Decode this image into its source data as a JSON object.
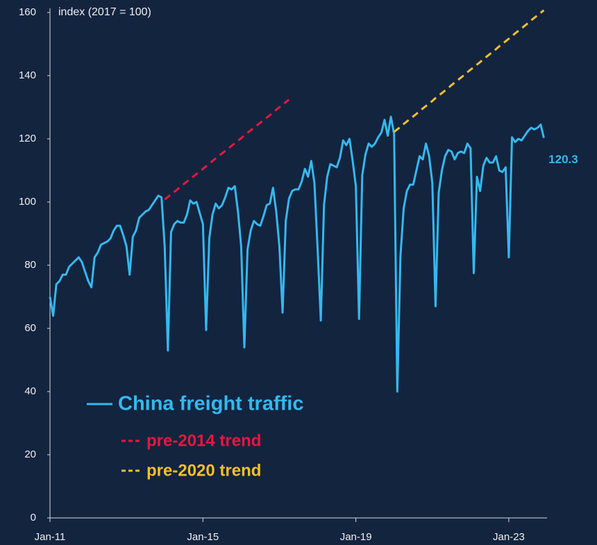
{
  "chart_data": {
    "type": "line",
    "y_label": "index (2017 = 100)",
    "categories": [
      "Jan-11",
      null,
      null,
      null,
      null,
      null,
      null,
      null,
      null,
      null,
      null,
      null,
      null,
      null,
      null,
      null,
      null,
      null,
      null,
      null,
      null,
      null,
      null,
      null,
      null,
      null,
      null,
      null,
      null,
      null,
      null,
      null,
      null,
      null,
      null,
      null,
      null,
      null,
      null,
      null,
      null,
      null,
      null,
      null,
      null,
      null,
      null,
      null,
      "Jan-15",
      null,
      null,
      null,
      null,
      null,
      null,
      null,
      null,
      null,
      null,
      null,
      null,
      null,
      null,
      null,
      null,
      null,
      null,
      null,
      null,
      null,
      null,
      null,
      null,
      null,
      null,
      null,
      null,
      null,
      null,
      null,
      null,
      null,
      null,
      null,
      null,
      null,
      null,
      null,
      null,
      null,
      null,
      null,
      null,
      null,
      null,
      null,
      "Jan-19",
      null,
      null,
      null,
      null,
      null,
      null,
      null,
      null,
      null,
      null,
      null,
      null,
      null,
      null,
      null,
      null,
      null,
      null,
      null,
      null,
      null,
      null,
      null,
      null,
      null,
      null,
      null,
      null,
      null,
      null,
      null,
      null,
      null,
      null,
      null,
      null,
      null,
      null,
      null,
      null,
      null,
      null,
      null,
      null,
      null,
      null,
      null,
      "Jan-23",
      null,
      null,
      null,
      null,
      null,
      null,
      null,
      null,
      null,
      null,
      null
    ],
    "series": [
      {
        "name": "China freight traffic",
        "color": "#35b8ee",
        "dash": false,
        "label_last": true,
        "values": [
          70,
          64,
          74,
          75,
          77,
          77,
          79.5,
          80.5,
          81.5,
          82.5,
          81,
          78,
          75,
          73,
          82.5,
          84,
          86.5,
          87,
          87.5,
          88.5,
          91,
          92.5,
          92.5,
          89.5,
          86,
          77,
          89,
          91,
          95,
          96,
          97,
          97.5,
          99,
          100.5,
          102,
          101.5,
          86,
          53,
          90.5,
          93,
          94,
          93.5,
          93.5,
          96,
          100.5,
          99.5,
          100,
          96.5,
          93,
          59.5,
          88.5,
          96,
          99.5,
          98,
          99,
          101.5,
          104.5,
          104,
          105,
          97,
          86,
          54,
          85,
          91,
          94,
          93,
          92.5,
          95.5,
          99,
          99.5,
          104.5,
          97,
          86,
          65,
          94,
          101,
          103.5,
          104,
          104,
          106.5,
          110.5,
          108,
          113,
          106,
          85,
          62.5,
          99,
          108,
          112,
          111.5,
          111,
          114,
          119.5,
          118,
          120,
          113,
          105,
          63,
          108.5,
          115,
          118.5,
          117.5,
          118.5,
          120.5,
          122,
          126,
          121,
          127,
          121.5,
          40,
          83,
          98,
          103.5,
          105.5,
          105.5,
          110,
          114.5,
          113.5,
          118.5,
          114.5,
          106,
          67,
          103,
          110,
          114.5,
          116.5,
          116,
          113.5,
          115.5,
          116,
          115.5,
          118.5,
          117,
          77.5,
          108,
          103.5,
          111.5,
          114,
          112.5,
          112.5,
          114.5,
          110,
          109.5,
          111,
          82.5,
          120.5,
          119,
          120,
          119.5,
          121,
          122.5,
          123.5,
          123,
          123.5,
          124.5,
          120.3
        ]
      },
      {
        "name": "pre-2014 trend",
        "color": "#e8173f",
        "dash": true,
        "values": [
          null,
          null,
          null,
          null,
          null,
          null,
          null,
          null,
          null,
          null,
          null,
          null,
          null,
          null,
          null,
          null,
          null,
          null,
          null,
          null,
          null,
          null,
          null,
          null,
          null,
          null,
          null,
          null,
          null,
          null,
          null,
          null,
          null,
          null,
          null,
          null,
          100.8,
          101.6,
          102.4,
          103.2,
          104.0,
          104.9,
          105.7,
          106.5,
          107.3,
          108.1,
          108.9,
          109.7,
          110.5,
          111.3,
          112.1,
          113.0,
          113.8,
          114.6,
          115.4,
          116.2,
          117.0,
          117.8,
          118.6,
          119.4,
          120.2,
          121.1,
          121.9,
          122.7,
          123.5,
          124.3,
          125.1,
          125.9,
          126.7,
          127.5,
          128.3,
          129.2,
          130.0,
          130.8,
          131.6,
          132.4,
          null,
          null,
          null,
          null,
          null,
          null,
          null,
          null,
          null,
          null,
          null,
          null,
          null,
          null,
          null,
          null,
          null,
          null,
          null,
          null,
          null,
          null,
          null,
          null,
          null,
          null,
          null,
          null,
          null,
          null,
          null,
          null,
          null,
          null,
          null,
          null,
          null,
          null,
          null,
          null,
          null,
          null,
          null,
          null,
          null,
          null,
          null,
          null,
          null,
          null,
          null,
          null,
          null,
          null,
          null,
          null,
          null,
          null,
          null,
          null,
          null,
          null,
          null,
          null,
          null,
          null,
          null,
          null,
          null,
          null,
          null,
          null,
          null,
          null,
          null,
          null,
          null,
          null,
          null,
          null
        ]
      },
      {
        "name": "pre-2020 trend",
        "color": "#f5c02a",
        "dash": true,
        "values": [
          null,
          null,
          null,
          null,
          null,
          null,
          null,
          null,
          null,
          null,
          null,
          null,
          null,
          null,
          null,
          null,
          null,
          null,
          null,
          null,
          null,
          null,
          null,
          null,
          null,
          null,
          null,
          null,
          null,
          null,
          null,
          null,
          null,
          null,
          null,
          null,
          null,
          null,
          null,
          null,
          null,
          null,
          null,
          null,
          null,
          null,
          null,
          null,
          null,
          null,
          null,
          null,
          null,
          null,
          null,
          null,
          null,
          null,
          null,
          null,
          null,
          null,
          null,
          null,
          null,
          null,
          null,
          null,
          null,
          null,
          null,
          null,
          null,
          null,
          null,
          null,
          null,
          null,
          null,
          null,
          null,
          null,
          null,
          null,
          null,
          null,
          null,
          null,
          null,
          null,
          null,
          null,
          null,
          null,
          null,
          null,
          null,
          null,
          null,
          null,
          null,
          null,
          null,
          null,
          null,
          null,
          null,
          null,
          122.2,
          123.0,
          123.8,
          124.7,
          125.5,
          126.3,
          127.1,
          127.9,
          128.8,
          129.6,
          130.4,
          131.2,
          132.0,
          132.9,
          133.7,
          134.5,
          135.3,
          136.1,
          137.0,
          137.8,
          138.6,
          139.4,
          140.2,
          141.1,
          141.9,
          142.7,
          143.5,
          144.3,
          145.2,
          146.0,
          146.8,
          147.6,
          148.4,
          149.3,
          150.1,
          150.9,
          151.7,
          152.5,
          153.4,
          154.2,
          155.0,
          155.8,
          156.6,
          157.5,
          158.3,
          159.1,
          159.9,
          160.7
        ]
      }
    ],
    "ylim": [
      0,
      160
    ],
    "yticks": [
      0,
      20,
      40,
      60,
      80,
      100,
      120,
      140,
      160
    ],
    "grid": false,
    "legend": "lower-left"
  }
}
